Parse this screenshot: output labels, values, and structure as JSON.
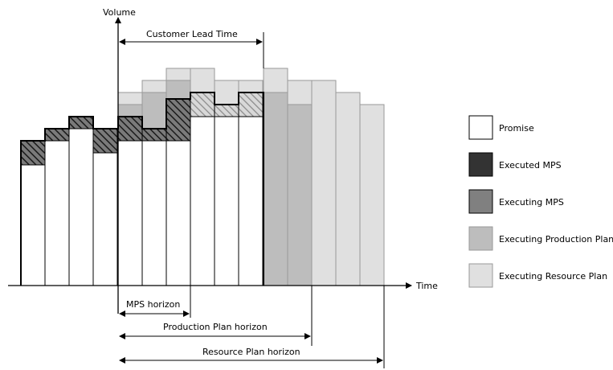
{
  "axes": {
    "y_label": "Volume",
    "x_label": "Time"
  },
  "annotations": {
    "customer_lead_time": "Customer Lead Time",
    "mps_horizon": "MPS horizon",
    "production_plan_horizon": "Production Plan horizon",
    "resource_plan_horizon": "Resource Plan horizon"
  },
  "legend": [
    {
      "key": "promise",
      "label": "Promise",
      "color": "#ffffff"
    },
    {
      "key": "executed_mps",
      "label": "Executed MPS",
      "color": "#333333"
    },
    {
      "key": "executing_mps",
      "label": "Executing MPS",
      "color": "#808080"
    },
    {
      "key": "executing_production_plan",
      "label": "Executing Production Plan",
      "color": "#bdbdbd"
    },
    {
      "key": "executing_resource_plan",
      "label": "Executing Resource Plan",
      "color": "#e0e0e0"
    }
  ]
}
